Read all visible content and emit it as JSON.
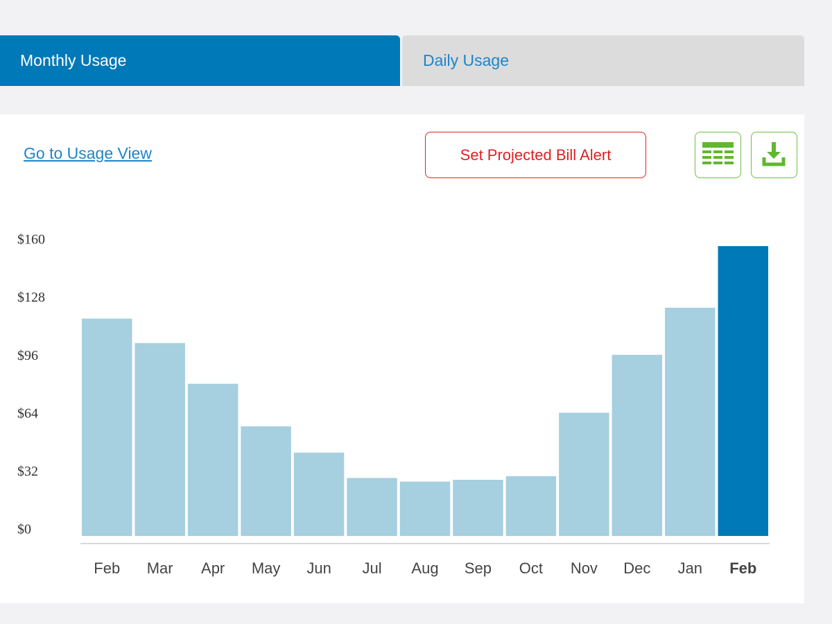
{
  "tabs": [
    {
      "label": "Monthly Usage"
    },
    {
      "label": "Daily Usage"
    }
  ],
  "link": "Go to Usage View",
  "alert_button": "Set Projected Bill Alert",
  "chart_data": {
    "type": "bar",
    "categories": [
      "Feb",
      "Mar",
      "Apr",
      "May",
      "Jun",
      "Jul",
      "Aug",
      "Sep",
      "Oct",
      "Nov",
      "Dec",
      "Jan",
      "Feb"
    ],
    "values": [
      120,
      106.5,
      84,
      60.5,
      46,
      32,
      30,
      31,
      33,
      68,
      100,
      126,
      160
    ],
    "colors": [
      "#a6cfe0",
      "#a6cfe0",
      "#a6cfe0",
      "#a6cfe0",
      "#a6cfe0",
      "#a6cfe0",
      "#a6cfe0",
      "#a6cfe0",
      "#a6cfe0",
      "#a6cfe0",
      "#a6cfe0",
      "#a6cfe0",
      "#0079b8"
    ],
    "ylim": [
      0,
      160
    ],
    "yticks": [
      {
        "value": 0,
        "label": "$0"
      },
      {
        "value": 32,
        "label": "$32"
      },
      {
        "value": 64,
        "label": "$64"
      },
      {
        "value": 96,
        "label": "$96"
      },
      {
        "value": 128,
        "label": "$128"
      },
      {
        "value": 160,
        "label": "$160"
      }
    ],
    "grid": false
  }
}
